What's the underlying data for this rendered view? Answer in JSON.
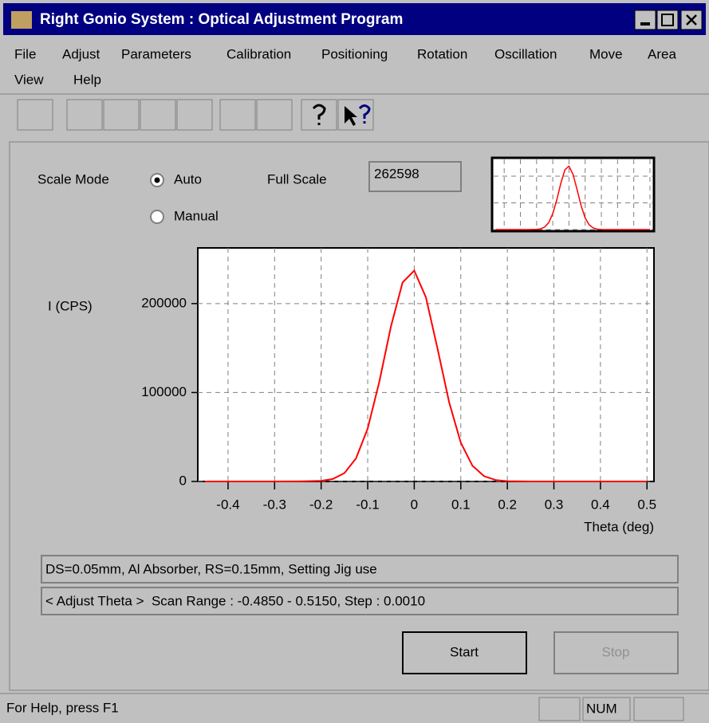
{
  "window": {
    "title": "Right Gonio System : Optical Adjustment Program"
  },
  "menu": [
    "File",
    "Adjust",
    "Parameters",
    "Calibration",
    "Positioning",
    "Rotation",
    "Oscillation",
    "Move",
    "Area",
    "View",
    "Help"
  ],
  "scale_mode": {
    "label": "Scale Mode",
    "options": [
      "Auto",
      "Manual"
    ],
    "selected": 0
  },
  "full_scale": {
    "label": "Full Scale",
    "value": "262598"
  },
  "chart_data": {
    "type": "line",
    "y_label": "I (CPS)",
    "x_label": "Theta (deg)",
    "x": [
      -0.45,
      -0.4,
      -0.35,
      -0.3,
      -0.25,
      -0.2,
      -0.175,
      -0.15,
      -0.125,
      -0.1,
      -0.075,
      -0.05,
      -0.025,
      0,
      0.025,
      0.05,
      0.075,
      0.1,
      0.125,
      0.15,
      0.175,
      0.2,
      0.25,
      0.3,
      0.35,
      0.4,
      0.45,
      0.5
    ],
    "values": [
      0,
      0,
      0,
      0,
      100,
      700,
      2800,
      9400,
      26000,
      59400,
      112000,
      174300,
      223800,
      237100,
      207200,
      149400,
      88900,
      43600,
      17700,
      5900,
      1600,
      400,
      0,
      0,
      0,
      0,
      0,
      0
    ],
    "color": "#ff0000",
    "xlim": [
      -0.465,
      0.515
    ],
    "ylim": [
      0,
      262598
    ],
    "xticks": [
      -0.4,
      -0.3,
      -0.2,
      -0.1,
      0,
      0.1,
      0.2,
      0.3,
      0.4,
      0.5
    ],
    "yticks": [
      0,
      100000,
      200000
    ],
    "grid": true
  },
  "info": [
    "DS=0.05mm, Al Absorber, RS=0.15mm, Setting Jig use",
    "< Adjust Theta >  Scan Range : -0.4850 - 0.5150, Step : 0.0010"
  ],
  "buttons": [
    "Start",
    "Stop"
  ],
  "status": {
    "help": "For Help, press F1",
    "num": "NUM"
  }
}
